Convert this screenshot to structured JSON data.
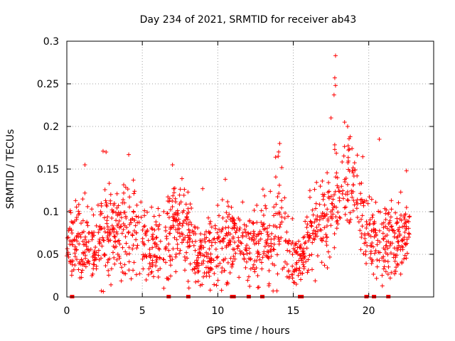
{
  "chart_data": {
    "type": "scatter",
    "title": "Day 234 of 2021, SRMTID for receiver ab43",
    "xlabel": "GPS time / hours",
    "ylabel": "SRMTID / TECUs",
    "xlim": [
      0,
      24.3
    ],
    "ylim": [
      0,
      0.3
    ],
    "grid": true,
    "marker": "+",
    "color": "#ff0000",
    "xticks": [
      0,
      5,
      10,
      15,
      20
    ],
    "xtick_labels": [
      "0",
      "5",
      "10",
      "15",
      "20"
    ],
    "yticks": [
      0,
      0.05,
      0.1,
      0.15,
      0.2,
      0.25,
      0.3
    ],
    "ytick_labels": [
      "0",
      "0.05",
      "0.1",
      "0.15",
      "0.2",
      "0.25",
      "0.3"
    ],
    "data_gaps_hours": [
      0.35,
      6.75,
      8.05,
      10.95,
      11.05,
      12.05,
      12.95,
      15.45,
      15.55,
      19.85,
      20.35,
      21.3
    ],
    "density_profile": [
      {
        "x": 0.0,
        "mean": 0.065,
        "spread": 0.03
      },
      {
        "x": 1.0,
        "mean": 0.06,
        "spread": 0.035
      },
      {
        "x": 2.0,
        "mean": 0.06,
        "spread": 0.035
      },
      {
        "x": 2.7,
        "mean": 0.075,
        "spread": 0.045
      },
      {
        "x": 3.5,
        "mean": 0.07,
        "spread": 0.035
      },
      {
        "x": 4.2,
        "mean": 0.08,
        "spread": 0.04
      },
      {
        "x": 5.0,
        "mean": 0.07,
        "spread": 0.03
      },
      {
        "x": 6.0,
        "mean": 0.06,
        "spread": 0.03
      },
      {
        "x": 7.0,
        "mean": 0.085,
        "spread": 0.04
      },
      {
        "x": 8.0,
        "mean": 0.08,
        "spread": 0.035
      },
      {
        "x": 8.7,
        "mean": 0.045,
        "spread": 0.025
      },
      {
        "x": 9.5,
        "mean": 0.05,
        "spread": 0.03
      },
      {
        "x": 10.5,
        "mean": 0.065,
        "spread": 0.035
      },
      {
        "x": 11.5,
        "mean": 0.065,
        "spread": 0.03
      },
      {
        "x": 12.5,
        "mean": 0.06,
        "spread": 0.03
      },
      {
        "x": 13.5,
        "mean": 0.075,
        "spread": 0.04
      },
      {
        "x": 14.0,
        "mean": 0.09,
        "spread": 0.05
      },
      {
        "x": 14.8,
        "mean": 0.05,
        "spread": 0.03
      },
      {
        "x": 15.4,
        "mean": 0.04,
        "spread": 0.02
      },
      {
        "x": 16.0,
        "mean": 0.075,
        "spread": 0.03
      },
      {
        "x": 17.0,
        "mean": 0.085,
        "spread": 0.035
      },
      {
        "x": 17.7,
        "mean": 0.11,
        "spread": 0.05
      },
      {
        "x": 18.5,
        "mean": 0.145,
        "spread": 0.05
      },
      {
        "x": 19.3,
        "mean": 0.12,
        "spread": 0.04
      },
      {
        "x": 20.0,
        "mean": 0.065,
        "spread": 0.03
      },
      {
        "x": 21.0,
        "mean": 0.065,
        "spread": 0.035
      },
      {
        "x": 22.0,
        "mean": 0.065,
        "spread": 0.035
      },
      {
        "x": 22.7,
        "mean": 0.08,
        "spread": 0.02
      }
    ],
    "highlighted_points": [
      {
        "x": 17.8,
        "y": 0.283
      },
      {
        "x": 17.75,
        "y": 0.257
      },
      {
        "x": 17.8,
        "y": 0.248
      },
      {
        "x": 17.7,
        "y": 0.237
      },
      {
        "x": 18.4,
        "y": 0.205
      },
      {
        "x": 18.6,
        "y": 0.2
      },
      {
        "x": 17.5,
        "y": 0.21
      },
      {
        "x": 20.7,
        "y": 0.185
      },
      {
        "x": 14.1,
        "y": 0.18
      },
      {
        "x": 14.0,
        "y": 0.165
      },
      {
        "x": 2.4,
        "y": 0.171
      },
      {
        "x": 2.6,
        "y": 0.17
      },
      {
        "x": 4.1,
        "y": 0.167
      },
      {
        "x": 1.2,
        "y": 0.155
      },
      {
        "x": 7.0,
        "y": 0.155
      },
      {
        "x": 10.5,
        "y": 0.138
      },
      {
        "x": 9.0,
        "y": 0.127
      },
      {
        "x": 22.5,
        "y": 0.148
      },
      {
        "x": 9.5,
        "y": 0.008
      },
      {
        "x": 15.2,
        "y": 0.015
      },
      {
        "x": 20.9,
        "y": 0.013
      }
    ]
  }
}
